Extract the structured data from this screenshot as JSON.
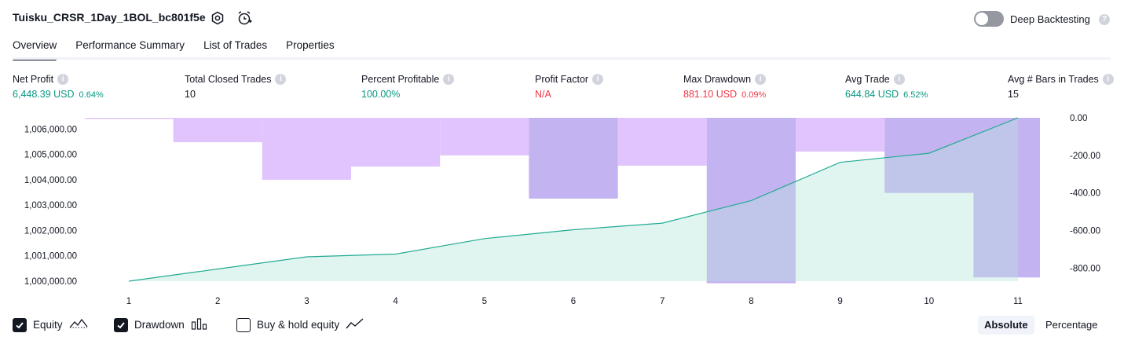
{
  "header": {
    "strategy_name": "Tuisku_CRSR_1Day_1BOL_bc801f5e",
    "settings_icon": "gear-icon",
    "alert_icon": "alarm-clock-plus-icon",
    "deep_backtesting_label": "Deep Backtesting",
    "deep_backtesting_enabled": false,
    "help_icon": "question-icon"
  },
  "tabs": [
    {
      "label": "Overview",
      "active": true
    },
    {
      "label": "Performance Summary",
      "active": false
    },
    {
      "label": "List of Trades",
      "active": false
    },
    {
      "label": "Properties",
      "active": false
    }
  ],
  "metrics": {
    "net_profit": {
      "label": "Net Profit",
      "value": "6,448.39 USD",
      "pct": "0.64%"
    },
    "total_closed_trades": {
      "label": "Total Closed Trades",
      "value": "10"
    },
    "percent_profitable": {
      "label": "Percent Profitable",
      "value": "100.00%"
    },
    "profit_factor": {
      "label": "Profit Factor",
      "value": "N/A"
    },
    "max_drawdown": {
      "label": "Max Drawdown",
      "value": "881.10 USD",
      "pct": "0.09%"
    },
    "avg_trade": {
      "label": "Avg Trade",
      "value": "644.84 USD",
      "pct": "6.52%"
    },
    "avg_bars": {
      "label": "Avg # Bars in Trades",
      "value": "15"
    }
  },
  "colors": {
    "positive": "#089981",
    "negative": "#f23645",
    "equity_line": "#22ab94",
    "equity_fill": "#d7f1eb",
    "drawdown_fill": "#e1c4fd"
  },
  "chart_data": {
    "type": "area",
    "x": [
      1,
      2,
      3,
      4,
      5,
      6,
      7,
      8,
      9,
      10,
      11
    ],
    "left_axis_ticks": [
      "1,006,000.00",
      "1,005,000.00",
      "1,004,000.00",
      "1,003,000.00",
      "1,002,000.00",
      "1,001,000.00",
      "1,000,000.00"
    ],
    "left_axis_tick_values": [
      1006000,
      1005000,
      1004000,
      1003000,
      1002000,
      1001000,
      1000000
    ],
    "right_axis_ticks": [
      "0.00",
      "-200.00",
      "-400.00",
      "-600.00",
      "-800.00"
    ],
    "right_axis_tick_values": [
      0,
      -200,
      -400,
      -600,
      -800
    ],
    "left_ylim": [
      1000000,
      1006448.39
    ],
    "right_ylim": [
      -870,
      0
    ],
    "series": [
      {
        "name": "Equity",
        "axis": "left",
        "values": [
          1000000,
          1000480,
          1000960,
          1001070,
          1001680,
          1002030,
          1002290,
          1003180,
          1004690,
          1005050,
          1006448.39
        ]
      },
      {
        "name": "Drawdown",
        "axis": "right",
        "kind": "bar",
        "values": [
          0,
          -130,
          -330,
          -260,
          -200,
          -430,
          -255,
          -881.1,
          -180,
          -400,
          -850
        ]
      }
    ]
  },
  "legend": {
    "equity": {
      "label": "Equity",
      "checked": true,
      "icon": "equity-line-icon"
    },
    "drawdown": {
      "label": "Drawdown",
      "checked": true,
      "icon": "drawdown-bars-icon"
    },
    "buy_hold": {
      "label": "Buy & hold equity",
      "checked": false,
      "icon": "buy-hold-line-icon"
    }
  },
  "mode": {
    "absolute_label": "Absolute",
    "percentage_label": "Percentage",
    "active": "absolute"
  }
}
